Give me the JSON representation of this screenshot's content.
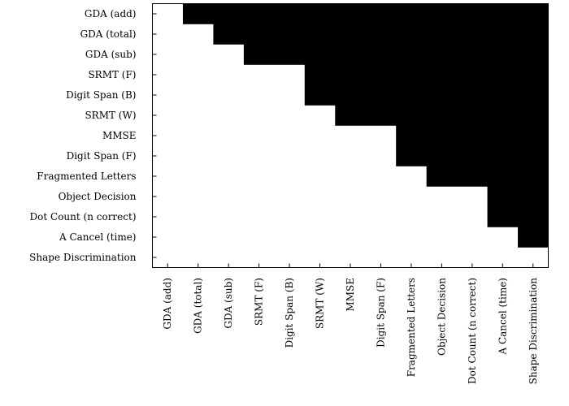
{
  "chart_data": {
    "type": "heatmap",
    "title": "",
    "xlabel": "",
    "ylabel": "",
    "grid": false,
    "legend": "none",
    "colors": {
      "filled": "#000000",
      "empty": "#ffffff",
      "frame": "#000000"
    },
    "rows": [
      "GDA (add)",
      "GDA (total)",
      "GDA (sub)",
      "SRMT (F)",
      "Digit Span (B)",
      "SRMT (W)",
      "MMSE",
      "Digit Span (F)",
      "Fragmented Letters",
      "Object Decision",
      "Dot Count (n correct)",
      "A Cancel (time)",
      "Shape Discrimination"
    ],
    "columns": [
      "GDA (add)",
      "GDA (total)",
      "GDA (sub)",
      "SRMT (F)",
      "Digit Span (B)",
      "SRMT (W)",
      "MMSE",
      "Digit Span (F)",
      "Fragmented Letters",
      "Object Decision",
      "Dot Count (n correct)",
      "A Cancel (time)",
      "Shape Discrimination"
    ],
    "first_filled_column_per_row": [
      1,
      2,
      3,
      5,
      5,
      6,
      8,
      8,
      9,
      11,
      11,
      12,
      13
    ],
    "fill_rule": "row r is filled (black) for every column index >= first_filled_column_per_row[r]"
  }
}
